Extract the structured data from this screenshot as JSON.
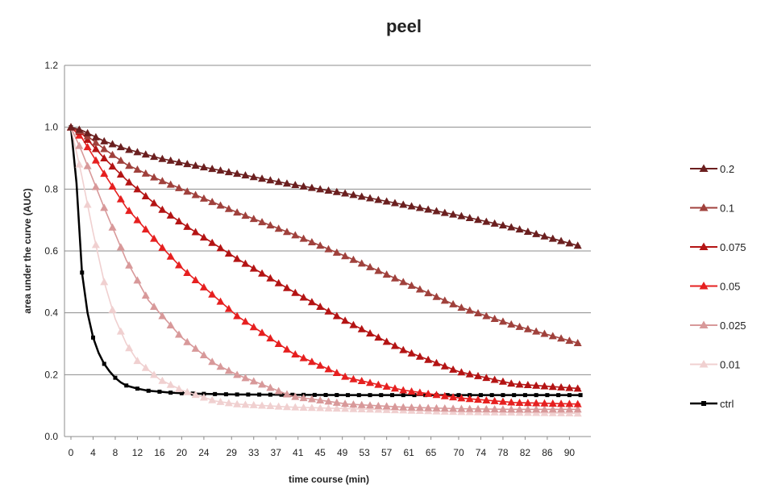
{
  "chart_data": {
    "type": "line",
    "title": "peel",
    "xlabel": "time course (min)",
    "ylabel": "area under the curve (AUC)",
    "ylim": [
      0,
      1.2
    ],
    "yticks": [
      "0.0",
      "0.2",
      "0.4",
      "0.6",
      "0.8",
      "1.0",
      "1.2"
    ],
    "xlim": [
      0,
      93
    ],
    "xticks": [
      0,
      4,
      8,
      12,
      16,
      20,
      24,
      29,
      33,
      37,
      41,
      45,
      49,
      53,
      57,
      61,
      65,
      70,
      74,
      78,
      82,
      86,
      90
    ],
    "grid": true,
    "legend_position": "right",
    "series": [
      {
        "name": "0.2",
        "color": "#6b1f1f",
        "marker": "triangle",
        "x": [
          0,
          2,
          6,
          10,
          16,
          20,
          30,
          40,
          50,
          60,
          70,
          80,
          92
        ],
        "y": [
          1.0,
          0.99,
          0.955,
          0.93,
          0.9,
          0.885,
          0.85,
          0.815,
          0.785,
          0.75,
          0.715,
          0.675,
          0.615
        ]
      },
      {
        "name": "0.1",
        "color": "#a0413c",
        "marker": "triangle",
        "x": [
          0,
          2,
          6,
          10,
          16,
          20,
          30,
          40,
          50,
          60,
          70,
          80,
          92
        ],
        "y": [
          1.0,
          0.985,
          0.93,
          0.88,
          0.83,
          0.8,
          0.725,
          0.655,
          0.58,
          0.5,
          0.42,
          0.36,
          0.3
        ]
      },
      {
        "name": "0.075",
        "color": "#b41414",
        "marker": "triangle",
        "x": [
          0,
          2,
          6,
          10,
          16,
          20,
          30,
          40,
          50,
          60,
          70,
          80,
          92
        ],
        "y": [
          1.0,
          0.98,
          0.9,
          0.83,
          0.74,
          0.69,
          0.575,
          0.47,
          0.37,
          0.28,
          0.21,
          0.17,
          0.155
        ]
      },
      {
        "name": "0.05",
        "color": "#e62020",
        "marker": "triangle",
        "x": [
          0,
          2,
          6,
          10,
          16,
          20,
          30,
          40,
          50,
          60,
          70,
          80,
          92
        ],
        "y": [
          1.0,
          0.965,
          0.85,
          0.74,
          0.62,
          0.545,
          0.39,
          0.27,
          0.19,
          0.15,
          0.125,
          0.11,
          0.105
        ]
      },
      {
        "name": "0.025",
        "color": "#d8999a",
        "marker": "triangle",
        "x": [
          0,
          2,
          6,
          10,
          14,
          20,
          26,
          30,
          40,
          50,
          60,
          70,
          80,
          92
        ],
        "y": [
          1.0,
          0.92,
          0.74,
          0.57,
          0.44,
          0.32,
          0.235,
          0.2,
          0.13,
          0.105,
          0.095,
          0.09,
          0.088,
          0.088
        ]
      },
      {
        "name": "0.01",
        "color": "#f0d0d0",
        "marker": "triangle",
        "x": [
          0,
          2,
          4,
          6,
          8,
          10,
          12,
          16,
          20,
          26,
          30,
          40,
          50,
          60,
          70,
          80,
          92
        ],
        "y": [
          1.0,
          0.84,
          0.66,
          0.5,
          0.38,
          0.3,
          0.245,
          0.185,
          0.15,
          0.115,
          0.105,
          0.095,
          0.09,
          0.085,
          0.08,
          0.078,
          0.075
        ]
      },
      {
        "name": "ctrl",
        "color": "#000000",
        "marker": "square",
        "x": [
          0,
          1,
          2,
          3,
          4,
          5,
          6,
          7,
          8,
          9,
          10,
          12,
          14,
          16,
          18,
          20,
          24,
          30,
          40,
          50,
          60,
          70,
          80,
          92
        ],
        "y": [
          1.0,
          0.82,
          0.53,
          0.4,
          0.32,
          0.27,
          0.235,
          0.21,
          0.19,
          0.175,
          0.165,
          0.155,
          0.148,
          0.145,
          0.142,
          0.14,
          0.138,
          0.136,
          0.135,
          0.134,
          0.134,
          0.134,
          0.134,
          0.134
        ]
      }
    ]
  }
}
